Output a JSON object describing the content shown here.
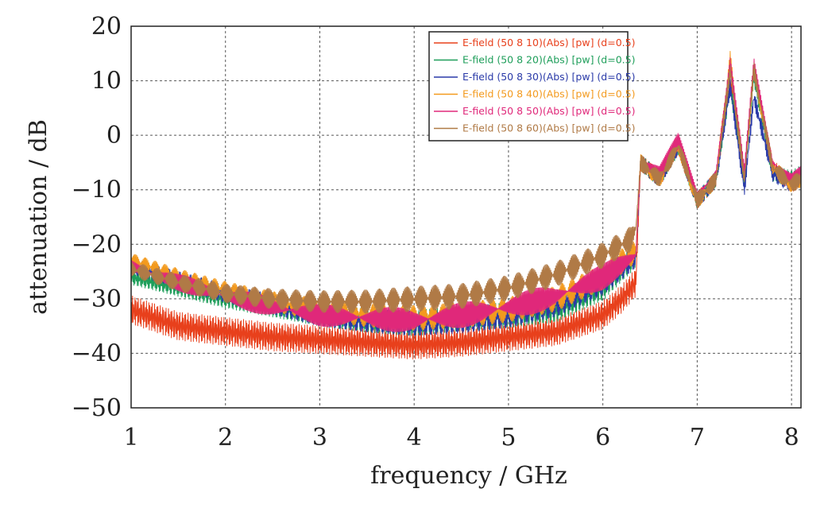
{
  "chart_data": {
    "type": "line",
    "xlabel": "frequency / GHz",
    "ylabel": "attenuation / dB",
    "xlim": [
      1,
      8.1
    ],
    "ylim": [
      -50,
      20
    ],
    "xticks": [
      "1",
      "2",
      "3",
      "4",
      "5",
      "6",
      "7",
      "8"
    ],
    "yticks": [
      "20",
      "10",
      "0",
      "−10",
      "−20",
      "−30",
      "−40",
      "−50"
    ],
    "grid": true,
    "legend_position": "top-right",
    "series": [
      {
        "name": "E-field (50 8 10)(Abs) [pw] (d=0.5)",
        "color": "#e8401c",
        "x": [
          1.0,
          1.5,
          2.0,
          2.5,
          3.0,
          3.5,
          4.0,
          4.5,
          5.0,
          5.5,
          6.0,
          6.2,
          6.35,
          6.4,
          6.6,
          6.8,
          7.0,
          7.2,
          7.35,
          7.5,
          7.6,
          7.8,
          8.0,
          8.1
        ],
        "y": [
          -32,
          -35,
          -36,
          -37,
          -37.5,
          -38,
          -38.5,
          -38,
          -37,
          -36,
          -33,
          -30,
          -27,
          -5,
          -8,
          -2,
          -12,
          -8,
          10,
          -8,
          12,
          -6,
          -9,
          -8
        ]
      },
      {
        "name": "E-field (50 8 20)(Abs) [pw] (d=0.5)",
        "color": "#1e9e5a",
        "x": [
          1.0,
          1.5,
          2.0,
          2.5,
          3.0,
          3.5,
          4.0,
          4.5,
          5.0,
          5.5,
          6.0,
          6.35,
          6.4,
          6.6,
          6.8,
          7.0,
          7.2,
          7.35,
          7.5,
          7.6,
          7.8,
          8.0,
          8.1
        ],
        "y": [
          -26,
          -28,
          -30,
          -31.5,
          -33,
          -34,
          -34.5,
          -33.5,
          -33,
          -32,
          -28,
          -22,
          -5,
          -8,
          -2,
          -12,
          -8,
          9,
          -8,
          11,
          -7,
          -8,
          -7
        ]
      },
      {
        "name": "E-field (50 8 30)(Abs) [pw] (d=0.5)",
        "color": "#2a3aa8",
        "x": [
          1.0,
          1.5,
          2.0,
          2.5,
          3.0,
          3.5,
          4.0,
          4.5,
          5.0,
          5.5,
          6.0,
          6.35,
          6.4,
          6.6,
          6.8,
          7.0,
          7.2,
          7.35,
          7.5,
          7.6,
          7.8,
          8.0,
          8.1
        ],
        "y": [
          -24,
          -26.5,
          -29,
          -31,
          -33,
          -34,
          -34.5,
          -34,
          -33,
          -31,
          -27,
          -22,
          -5,
          -8,
          -2,
          -12,
          -8,
          9,
          -10,
          7,
          -7,
          -9,
          -7
        ]
      },
      {
        "name": "E-field (50 8 40)(Abs) [pw] (d=0.5)",
        "color": "#f39a1e",
        "x": [
          1.0,
          1.5,
          2.0,
          2.5,
          3.0,
          3.5,
          4.0,
          4.5,
          5.0,
          5.5,
          6.0,
          6.35,
          6.4,
          6.6,
          6.8,
          7.0,
          7.2,
          7.35,
          7.5,
          7.6,
          7.8,
          8.0,
          8.1
        ],
        "y": [
          -23,
          -26,
          -28.5,
          -30.5,
          -32,
          -33,
          -33.5,
          -33,
          -32,
          -30,
          -26,
          -21,
          -5,
          -8,
          -2,
          -12,
          -8,
          14,
          -8,
          12,
          -6,
          -9,
          -8
        ]
      },
      {
        "name": "E-field (50 8 50)(Abs) [pw] (d=0.5)",
        "color": "#e0287a",
        "x": [
          1.0,
          1.5,
          2.0,
          2.5,
          3.0,
          3.5,
          4.0,
          4.5,
          5.0,
          5.5,
          6.0,
          6.35,
          6.4,
          6.6,
          6.8,
          7.0,
          7.2,
          7.35,
          7.5,
          7.6,
          7.8,
          8.0,
          8.1
        ],
        "y": [
          -24,
          -27,
          -29.5,
          -31.5,
          -33,
          -33.5,
          -34,
          -33,
          -31.5,
          -29.5,
          -26,
          -22,
          -5,
          -7,
          -1,
          -11,
          -7,
          13,
          -7,
          13,
          -5,
          -8,
          -7
        ]
      },
      {
        "name": "E-field (50 8 60)(Abs) [pw] (d=0.5)",
        "color": "#b07a46",
        "x": [
          1.0,
          1.5,
          2.0,
          2.5,
          3.0,
          3.5,
          4.0,
          4.5,
          5.0,
          5.5,
          6.0,
          6.3,
          6.35,
          6.4,
          6.6,
          6.8,
          7.0,
          7.2,
          7.35,
          7.5,
          7.6,
          7.8,
          8.0,
          8.1
        ],
        "y": [
          -24.5,
          -27,
          -29,
          -30,
          -30.5,
          -30.5,
          -30,
          -29.5,
          -28,
          -25.5,
          -22,
          -19,
          -17,
          -5,
          -8,
          -2,
          -12,
          -8,
          12,
          -8,
          12,
          -6,
          -9,
          -8
        ]
      }
    ]
  }
}
